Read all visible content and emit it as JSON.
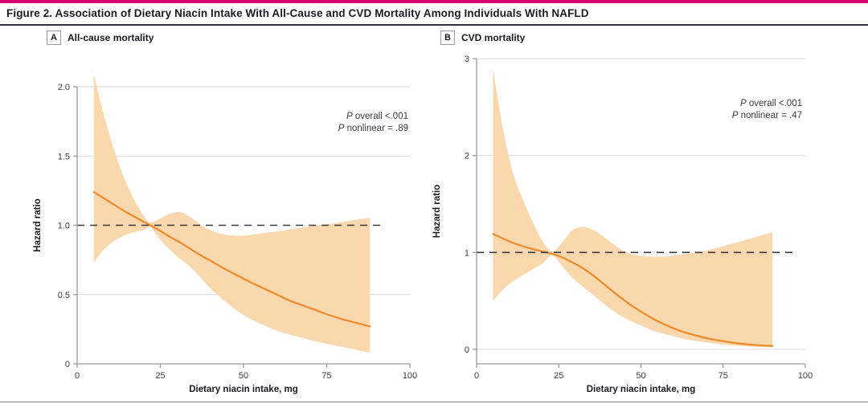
{
  "figure": {
    "title": "Figure 2. Association of Dietary Niacin Intake With All-Cause and CVD Mortality Among Individuals With NAFLD"
  },
  "colors": {
    "accent_bar": "#d6006e",
    "title_text": "#1b1b22",
    "title_rule": "#33323b",
    "bottom_rule": "#7d7d85",
    "band": "#fad8ae",
    "curve": "#ee8a2a",
    "grid": "#d9d9d9",
    "axis": "#9b9b9b",
    "dashed": "#3a3a40",
    "tick_text": "#3a3a42"
  },
  "panels": [
    {
      "tag": "A",
      "label": "All-cause mortality"
    },
    {
      "tag": "B",
      "label": "CVD mortality"
    }
  ],
  "chart_data": [
    {
      "type": "area",
      "panel": "A",
      "title": "All-cause mortality",
      "xlabel": "Dietary niacin intake, mg",
      "ylabel": "Hazard ratio",
      "xlim": [
        0,
        100
      ],
      "ylim": [
        0,
        2.0
      ],
      "xtick_values": [
        0,
        25,
        50,
        75,
        100
      ],
      "xtick_labels": [
        "0",
        "25",
        "50",
        "75",
        "100"
      ],
      "ytick_values": [
        0,
        0.5,
        1.0,
        1.5,
        2.0
      ],
      "ytick_labels": [
        "0",
        "0.5",
        "1.0",
        "1.5",
        "2.0"
      ],
      "grid_y": [
        0.5,
        1.5,
        2.0
      ],
      "ref_y": 1.0,
      "ref_x_end": 92.3,
      "annotations": [
        "P overall <.001",
        "P nonlinear = .89"
      ],
      "x": [
        5,
        8,
        11,
        14,
        17,
        20,
        22,
        25,
        28,
        31,
        34,
        37,
        40,
        44,
        48,
        52,
        56,
        60,
        64,
        68,
        72,
        76,
        80,
        84,
        88
      ],
      "series": [
        {
          "name": "hazard_ratio",
          "values": [
            1.24,
            1.195,
            1.15,
            1.105,
            1.065,
            1.025,
            1.0,
            0.96,
            0.915,
            0.875,
            0.83,
            0.785,
            0.745,
            0.69,
            0.64,
            0.59,
            0.545,
            0.5,
            0.455,
            0.42,
            0.385,
            0.35,
            0.32,
            0.295,
            0.27
          ]
        },
        {
          "name": "ci_upper",
          "values": [
            2.09,
            1.8,
            1.55,
            1.35,
            1.19,
            1.07,
            1.02,
            1.05,
            1.085,
            1.095,
            1.06,
            1.005,
            0.965,
            0.935,
            0.925,
            0.93,
            0.945,
            0.955,
            0.97,
            0.985,
            1.0,
            1.01,
            1.025,
            1.04,
            1.055
          ]
        },
        {
          "name": "ci_lower",
          "values": [
            0.73,
            0.825,
            0.885,
            0.925,
            0.95,
            0.965,
            0.985,
            0.895,
            0.82,
            0.755,
            0.7,
            0.625,
            0.545,
            0.46,
            0.385,
            0.325,
            0.28,
            0.24,
            0.21,
            0.185,
            0.16,
            0.14,
            0.12,
            0.1,
            0.08
          ]
        }
      ]
    },
    {
      "type": "area",
      "panel": "B",
      "title": "CVD mortality",
      "xlabel": "Dietary niacin intake, mg",
      "ylabel": "Hazard ratio",
      "xlim": [
        0,
        100
      ],
      "ylim": [
        0,
        3
      ],
      "xtick_values": [
        0,
        25,
        50,
        75,
        100
      ],
      "xtick_labels": [
        "0",
        "25",
        "50",
        "75",
        "100"
      ],
      "ytick_values": [
        0,
        1,
        2,
        3
      ],
      "ytick_labels": [
        "0",
        "1",
        "2",
        "3"
      ],
      "grid_y": [
        0,
        2,
        3
      ],
      "ref_y": 1.0,
      "ref_x_end": 96.5,
      "annotations": [
        "P overall <.001",
        "P nonlinear = .47"
      ],
      "x": [
        5,
        8,
        11,
        14,
        17,
        20,
        23,
        26,
        29,
        32,
        35,
        38,
        41,
        44,
        47,
        50,
        54,
        58,
        62,
        66,
        70,
        75,
        80,
        85,
        90
      ],
      "series": [
        {
          "name": "hazard_ratio",
          "values": [
            1.19,
            1.145,
            1.1,
            1.065,
            1.035,
            1.01,
            0.985,
            0.95,
            0.9,
            0.845,
            0.775,
            0.695,
            0.61,
            0.53,
            0.455,
            0.39,
            0.31,
            0.245,
            0.19,
            0.15,
            0.115,
            0.085,
            0.06,
            0.045,
            0.035
          ]
        },
        {
          "name": "ci_upper",
          "values": [
            2.9,
            2.28,
            1.83,
            1.55,
            1.32,
            1.12,
            1.01,
            1.1,
            1.225,
            1.265,
            1.24,
            1.18,
            1.1,
            1.03,
            0.985,
            0.965,
            0.955,
            0.96,
            0.975,
            0.995,
            1.02,
            1.065,
            1.11,
            1.16,
            1.21
          ]
        },
        {
          "name": "ci_lower",
          "values": [
            0.5,
            0.615,
            0.7,
            0.765,
            0.825,
            0.885,
            0.97,
            0.86,
            0.745,
            0.655,
            0.575,
            0.49,
            0.41,
            0.345,
            0.29,
            0.245,
            0.19,
            0.15,
            0.115,
            0.09,
            0.07,
            0.05,
            0.035,
            0.025,
            0.02
          ]
        }
      ]
    }
  ]
}
